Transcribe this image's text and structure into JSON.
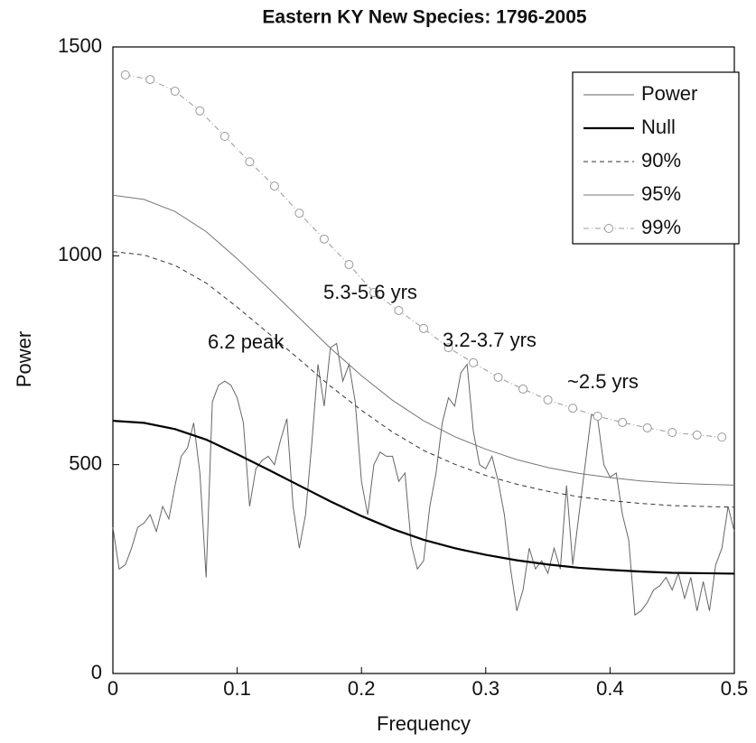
{
  "chart_data": {
    "type": "line",
    "title": "Eastern KY New Species: 1796-2005",
    "xlabel": "Frequency",
    "ylabel": "Power",
    "xlim": [
      0,
      0.5
    ],
    "ylim": [
      0,
      1500
    ],
    "xticks": [
      0,
      0.1,
      0.2,
      0.3,
      0.4,
      0.5
    ],
    "yticks": [
      0,
      500,
      1000,
      1500
    ],
    "grid": false,
    "legend": "upper right",
    "x": [
      0,
      0.025,
      0.05,
      0.075,
      0.1,
      0.125,
      0.15,
      0.175,
      0.2,
      0.225,
      0.25,
      0.275,
      0.3,
      0.325,
      0.35,
      0.375,
      0.4,
      0.425,
      0.45,
      0.475,
      0.5
    ],
    "series": [
      {
        "name": "Power",
        "color": "#666666",
        "width": 1,
        "dash": "none",
        "x": [
          0,
          0.005,
          0.01,
          0.015,
          0.02,
          0.025,
          0.03,
          0.035,
          0.04,
          0.045,
          0.05,
          0.055,
          0.06,
          0.065,
          0.07,
          0.075,
          0.08,
          0.085,
          0.09,
          0.095,
          0.1,
          0.105,
          0.11,
          0.115,
          0.12,
          0.125,
          0.13,
          0.135,
          0.14,
          0.145,
          0.15,
          0.155,
          0.16,
          0.165,
          0.17,
          0.175,
          0.18,
          0.185,
          0.19,
          0.195,
          0.2,
          0.205,
          0.21,
          0.215,
          0.22,
          0.225,
          0.23,
          0.235,
          0.24,
          0.245,
          0.25,
          0.255,
          0.26,
          0.265,
          0.27,
          0.275,
          0.28,
          0.285,
          0.29,
          0.295,
          0.3,
          0.305,
          0.31,
          0.315,
          0.32,
          0.325,
          0.33,
          0.335,
          0.34,
          0.345,
          0.35,
          0.355,
          0.36,
          0.365,
          0.37,
          0.375,
          0.38,
          0.385,
          0.39,
          0.395,
          0.4,
          0.405,
          0.41,
          0.415,
          0.42,
          0.425,
          0.43,
          0.435,
          0.44,
          0.445,
          0.45,
          0.455,
          0.46,
          0.465,
          0.47,
          0.475,
          0.48,
          0.485,
          0.49,
          0.495,
          0.5
        ],
        "values": [
          350,
          250,
          260,
          300,
          350,
          360,
          380,
          340,
          400,
          370,
          450,
          520,
          540,
          600,
          480,
          230,
          650,
          690,
          700,
          690,
          660,
          600,
          400,
          490,
          510,
          520,
          500,
          560,
          610,
          400,
          300,
          380,
          550,
          740,
          640,
          780,
          790,
          700,
          740,
          650,
          460,
          380,
          500,
          530,
          520,
          520,
          460,
          480,
          310,
          250,
          270,
          400,
          480,
          600,
          660,
          640,
          720,
          740,
          580,
          500,
          490,
          520,
          460,
          380,
          250,
          150,
          200,
          300,
          250,
          270,
          240,
          300,
          250,
          450,
          260,
          380,
          500,
          620,
          610,
          500,
          470,
          480,
          380,
          320,
          140,
          150,
          170,
          200,
          210,
          230,
          200,
          240,
          180,
          230,
          150,
          220,
          150,
          260,
          300,
          400,
          340
        ]
      },
      {
        "name": "Null",
        "color": "#000000",
        "width": 2.2,
        "dash": "none",
        "values": [
          605,
          600,
          585,
          560,
          525,
          488,
          450,
          412,
          377,
          346,
          320,
          300,
          284,
          271,
          261,
          253,
          248,
          244,
          241,
          240,
          239
        ]
      },
      {
        "name": "90%",
        "color": "#333333",
        "width": 1,
        "dash": "5 4",
        "values": [
          1010,
          1002,
          977,
          935,
          877,
          815,
          752,
          688,
          630,
          578,
          534,
          501,
          474,
          453,
          436,
          423,
          414,
          407,
          402,
          400,
          398
        ]
      },
      {
        "name": "95%",
        "color": "#777777",
        "width": 1,
        "dash": "none",
        "values": [
          1145,
          1135,
          1106,
          1058,
          993,
          923,
          851,
          779,
          713,
          654,
          605,
          567,
          537,
          512,
          493,
          479,
          469,
          461,
          456,
          453,
          451
        ]
      },
      {
        "name": "99%",
        "color": "#999999",
        "width": 1,
        "dash": "6 3 1 3",
        "marker": "circle",
        "x": [
          0.01,
          0.03,
          0.05,
          0.07,
          0.09,
          0.11,
          0.13,
          0.15,
          0.17,
          0.19,
          0.21,
          0.23,
          0.25,
          0.27,
          0.29,
          0.31,
          0.33,
          0.35,
          0.37,
          0.39,
          0.41,
          0.43,
          0.45,
          0.47,
          0.49
        ],
        "values": [
          1433,
          1422,
          1394,
          1347,
          1286,
          1225,
          1167,
          1102,
          1040,
          979,
          912,
          869,
          826,
          780,
          744,
          709,
          681,
          655,
          635,
          616,
          601,
          588,
          577,
          571,
          566
        ]
      }
    ],
    "annotations": [
      "5.3-5.6 yrs",
      "6.2 peak",
      "3.2-3.7 yrs",
      "~2.5 yrs"
    ]
  }
}
